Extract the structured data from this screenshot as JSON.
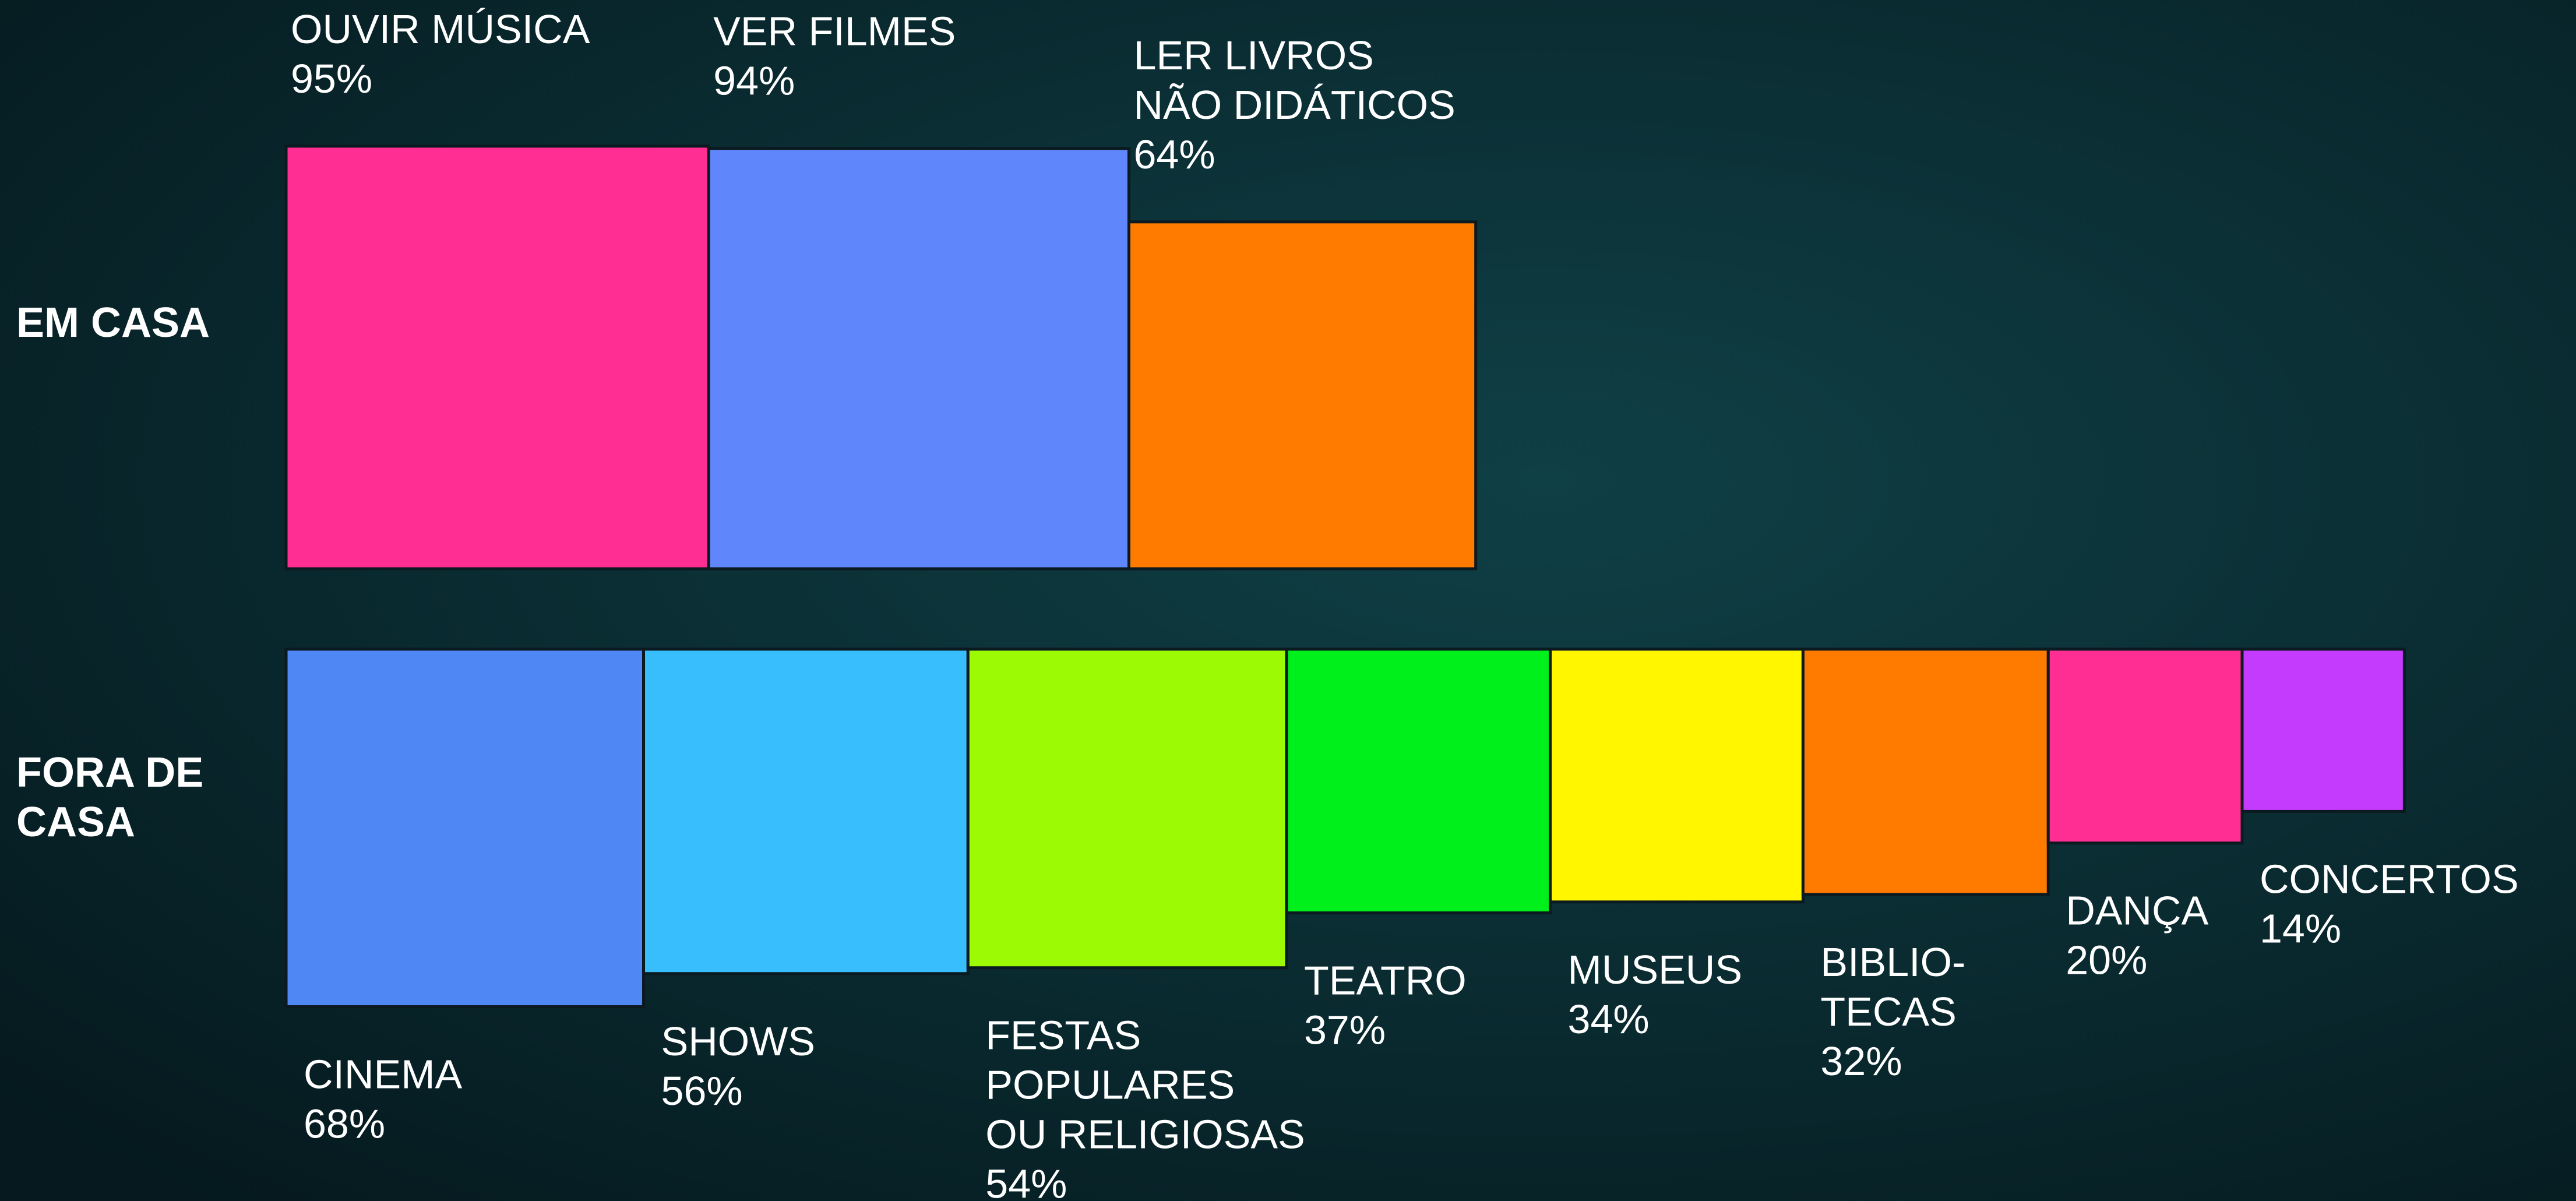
{
  "chart_data": {
    "type": "square",
    "series": [
      {
        "name": "EM CASA",
        "categories": [
          "OUVIR MÚSICA",
          "VER FILMES",
          "LER LIVROS\nNÃO DIDÁTICOS"
        ],
        "values": [
          95,
          94,
          64
        ],
        "value_labels": [
          "95%",
          "94%",
          "64%"
        ],
        "colors": [
          "#ff2e92",
          "#5f86fb",
          "#ff7b00"
        ]
      },
      {
        "name": "FORA DE\nCASA",
        "categories": [
          "CINEMA",
          "SHOWS",
          "FESTAS\nPOPULARES\nOU RELIGIOSAS",
          "TEATRO",
          "MUSEUS",
          "BIBLIO-\nTECAS",
          "DANÇA",
          "CONCERTOS"
        ],
        "values": [
          68,
          56,
          54,
          37,
          34,
          32,
          20,
          14
        ],
        "value_labels": [
          "68%",
          "56%",
          "54%",
          "37%",
          "34%",
          "32%",
          "20%",
          "14%"
        ],
        "colors": [
          "#4f87f5",
          "#38befc",
          "#9cfb04",
          "#00f01c",
          "#fff600",
          "#ff7b00",
          "#ff2e92",
          "#c43bfd"
        ]
      }
    ]
  }
}
